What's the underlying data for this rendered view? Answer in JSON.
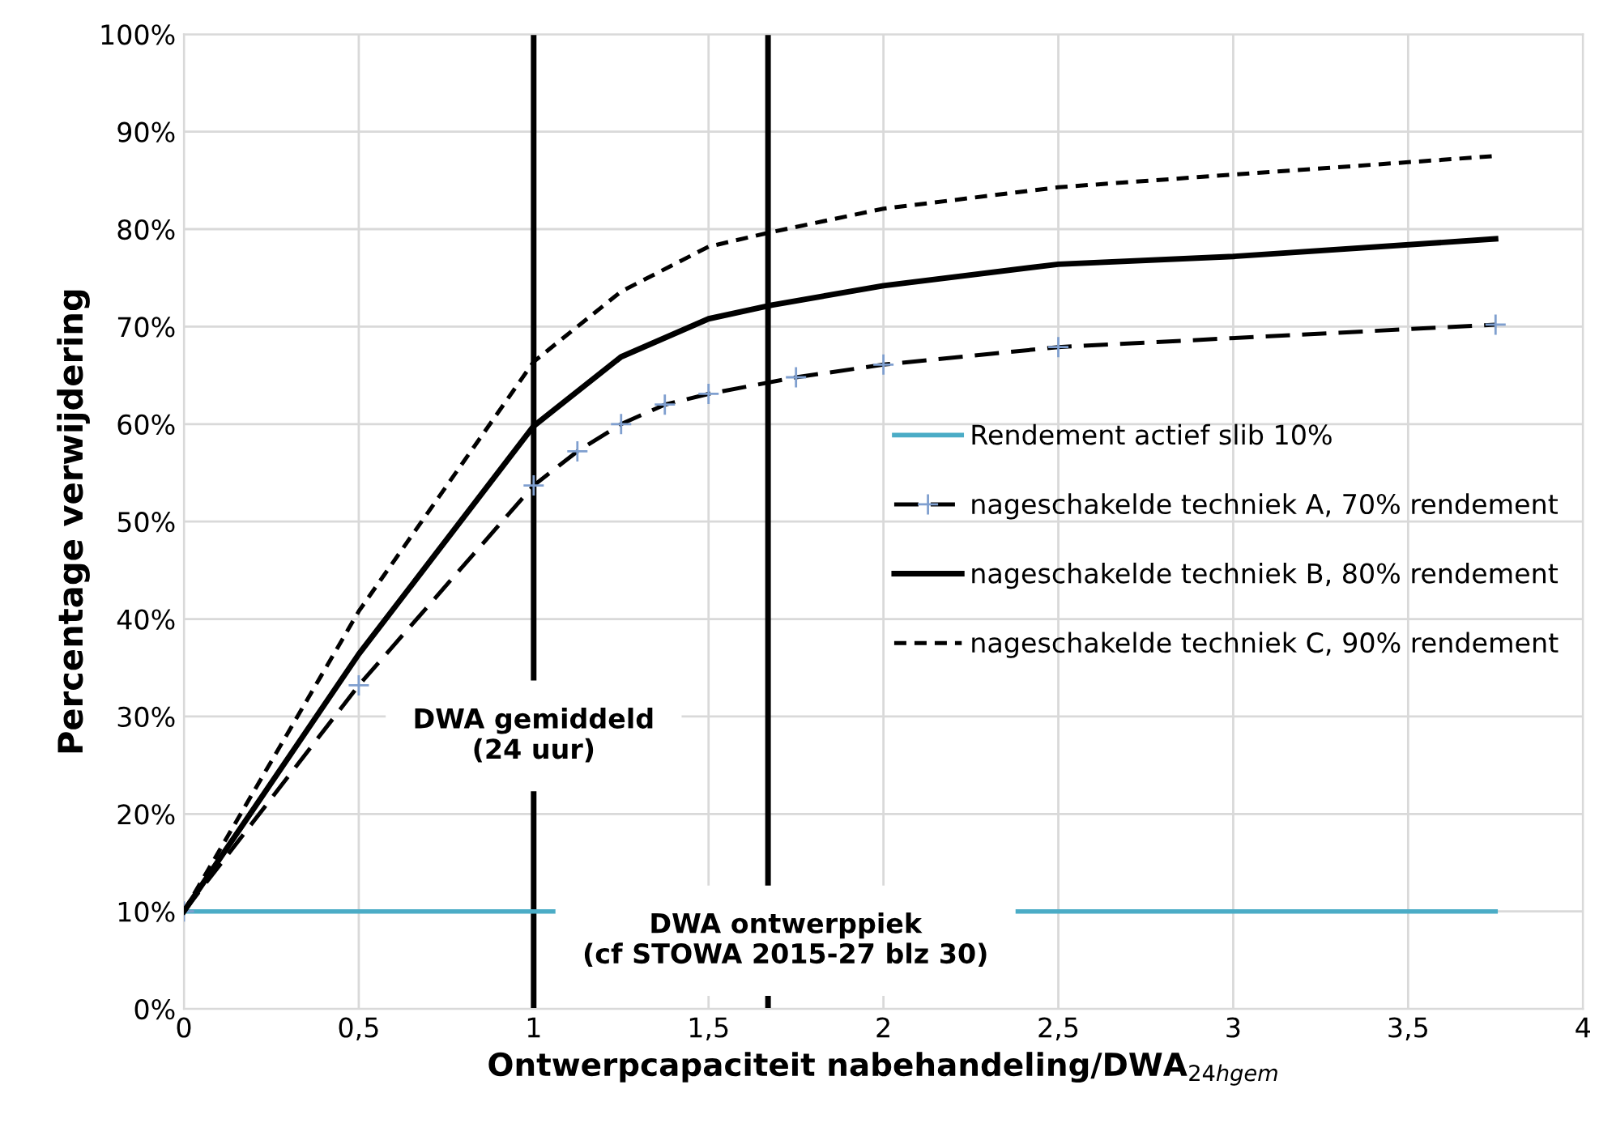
{
  "chart_data": {
    "type": "line",
    "xlabel": "Ontwerpcapaciteit nabehandeling/DWA$_{24hgem}$",
    "ylabel": "Percentage verwijdering",
    "xlim": [
      0,
      4
    ],
    "xticks": [
      0,
      {
        "value": 0.5,
        "label": "0,5"
      },
      1,
      {
        "value": 1.5,
        "label": "1,5"
      },
      2,
      {
        "value": 2.5,
        "label": "2,5"
      },
      3,
      {
        "value": 3.5,
        "label": "3,5"
      },
      4
    ],
    "ylim": [
      0,
      100
    ],
    "yticks": [
      {
        "value": 0,
        "label": "0%"
      },
      {
        "value": 10,
        "label": "10%"
      },
      {
        "value": 20,
        "label": "20%"
      },
      {
        "value": 30,
        "label": "30%"
      },
      {
        "value": 40,
        "label": "40%"
      },
      {
        "value": 50,
        "label": "50%"
      },
      {
        "value": 60,
        "label": "60%"
      },
      {
        "value": 70,
        "label": "70%"
      },
      {
        "value": 80,
        "label": "80%"
      },
      {
        "value": 90,
        "label": "90%"
      },
      {
        "value": 100,
        "label": "100%"
      }
    ],
    "grid": true,
    "legend": "right",
    "series": [
      {
        "name": "Rendement actief slib 10%",
        "color": "#4bacc6",
        "x": [
          0,
          3.75
        ],
        "values": [
          10,
          10
        ],
        "line_style": "solid",
        "marker": "none"
      },
      {
        "name": "nageschakelde techniek A, 70% rendement",
        "color": "#000000",
        "x": [
          0,
          0.5,
          1,
          1.125,
          1.25,
          1.375,
          1.5,
          1.75,
          2,
          2.5,
          3.75
        ],
        "values": [
          10,
          33.2,
          53.7,
          57.2,
          60,
          62,
          63.1,
          64.8,
          66.1,
          67.9,
          70.2
        ],
        "line_style": "dashed",
        "marker": "cross"
      },
      {
        "name": "nageschakelde techniek B, 80% rendement",
        "color": "#000000",
        "x": [
          0,
          0.5,
          1,
          1.25,
          1.5,
          1.68,
          2,
          2.5,
          3,
          3.75
        ],
        "values": [
          10,
          36.4,
          59.8,
          66.9,
          70.8,
          72.2,
          74.2,
          76.4,
          77.2,
          79
        ],
        "line_style": "solid",
        "marker": "none"
      },
      {
        "name": "nageschakelde techniek C, 90% rendement",
        "color": "#000000",
        "x": [
          0,
          0.5,
          1,
          1.25,
          1.5,
          1.68,
          2,
          2.5,
          3,
          3.75
        ],
        "values": [
          10,
          40.8,
          66.4,
          73.6,
          78.2,
          79.7,
          82.1,
          84.3,
          85.6,
          87.5
        ],
        "line_style": "dotted",
        "marker": "none"
      }
    ],
    "ref_lines": [
      {
        "axis": "x",
        "value": 1,
        "label": "DWA gemiddeld\n(24 uur)",
        "color": "#000000"
      },
      {
        "axis": "x",
        "value": 1.67,
        "label": "DWA ontwerppiek\n(cf STOWA 2015-27 blz 30)",
        "color": "#000000"
      }
    ]
  }
}
